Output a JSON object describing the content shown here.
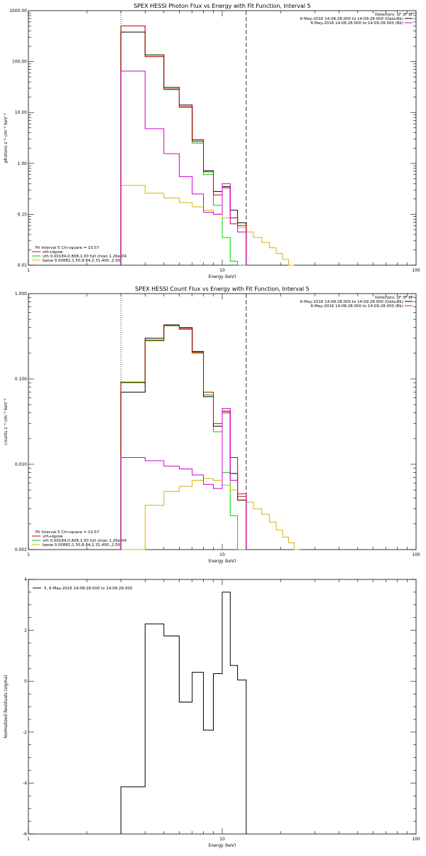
{
  "colors": {
    "data": "#000000",
    "background": "#d000d0",
    "total_fit": "#d00000",
    "vth": "#00d000",
    "bpow": "#d8b400"
  },
  "chart_data": [
    {
      "id": "photon",
      "type": "line",
      "title": "SPEX HESSI Photon Flux vs Energy with Fit Function, Interval 5",
      "xlabel": "Energy (keV)",
      "ylabel": "photons s⁻¹ cm⁻² keV⁻¹",
      "xscale": "log",
      "yscale": "log",
      "xlim": [
        1,
        100
      ],
      "ylim": [
        0.01,
        1000
      ],
      "x_ticks": [
        {
          "v": 1,
          "label": "1"
        },
        {
          "v": 10,
          "label": "10"
        },
        {
          "v": 100,
          "label": "100"
        }
      ],
      "y_ticks": [
        {
          "v": 0.01,
          "label": "0.01"
        },
        {
          "v": 0.1,
          "label": "0.10"
        },
        {
          "v": 1,
          "label": "1.00"
        },
        {
          "v": 10,
          "label": "10.00"
        },
        {
          "v": 100,
          "label": "100.00"
        },
        {
          "v": 1000,
          "label": "1000.00"
        }
      ],
      "vlines": [
        {
          "x": 3.0,
          "style": "dotted"
        },
        {
          "x": 13.3,
          "style": "dashed"
        }
      ],
      "legend_top_right": [
        {
          "text": "Detectors: 1F 3F 8F",
          "color": ""
        },
        {
          "text": "6-May-2016 14:08:28.000 to 14:09:28.000 (Data-Bk)",
          "color": "data"
        },
        {
          "text": "6-May-2016 14:08:28.000 to 14:09:28.000 (Bk)",
          "color": "background"
        }
      ],
      "legend_bottom_left": [
        {
          "text": "Fit Interval 5   Chi-square = 10.57",
          "color": ""
        },
        {
          "text": "vth+bpow",
          "color": "total_fit"
        },
        {
          "text": "vth 0.00184,0.808,1.00  full chian 1.26e-04",
          "color": "vth"
        },
        {
          "text": "bpow 0.00882,1.50,8.84,2.31,400.,2.50",
          "color": "bpow"
        }
      ],
      "series": [
        {
          "key": "vth",
          "color": "vth",
          "edges": [
            3,
            4,
            5,
            6,
            7,
            8,
            9,
            10,
            11,
            12,
            13.3
          ],
          "values": [
            500,
            125,
            28,
            12.5,
            2.5,
            0.6,
            0.15,
            0.035,
            0.012,
            0.006
          ]
        },
        {
          "key": "bpow",
          "color": "bpow",
          "edges": [
            3,
            4,
            5,
            6,
            7,
            8,
            9,
            10,
            11,
            12,
            13.3,
            14.5,
            16,
            17.5,
            19,
            20.5,
            22,
            23.5
          ],
          "values": [
            0.37,
            0.26,
            0.21,
            0.17,
            0.14,
            0.12,
            0.1,
            0.085,
            0.065,
            0.055,
            0.045,
            0.035,
            0.028,
            0.022,
            0.017,
            0.013,
            0.01
          ]
        },
        {
          "key": "data",
          "color": "data",
          "edges": [
            3,
            4,
            5,
            6,
            7,
            8,
            9,
            10,
            11,
            12,
            13.3
          ],
          "values": [
            380,
            135,
            31,
            14,
            2.9,
            0.72,
            0.28,
            0.35,
            0.12,
            0.068
          ]
        },
        {
          "key": "total_fit",
          "color": "total_fit",
          "edges": [
            3,
            4,
            5,
            6,
            7,
            8,
            9,
            10,
            11,
            12,
            13.3
          ],
          "values": [
            500,
            125,
            29,
            13,
            2.7,
            0.68,
            0.24,
            0.33,
            0.085,
            0.06
          ]
        },
        {
          "key": "background",
          "color": "background",
          "edges": [
            3,
            4,
            5,
            6,
            7,
            8,
            9,
            10,
            11,
            12,
            13.3
          ],
          "values": [
            65,
            4.8,
            1.55,
            0.55,
            0.25,
            0.11,
            0.1,
            0.4,
            0.065,
            0.045
          ]
        }
      ]
    },
    {
      "id": "count",
      "type": "line",
      "title": "SPEX HESSI Count Flux vs Energy with Fit Function, Interval 5",
      "xlabel": "Energy (keV)",
      "ylabel": "counts s⁻¹ cm⁻² keV⁻¹",
      "xscale": "log",
      "yscale": "log",
      "xlim": [
        1,
        100
      ],
      "ylim": [
        0.001,
        1
      ],
      "x_ticks": [
        {
          "v": 1,
          "label": "1"
        },
        {
          "v": 10,
          "label": "10"
        },
        {
          "v": 100,
          "label": "100"
        }
      ],
      "y_ticks": [
        {
          "v": 0.001,
          "label": "0.001"
        },
        {
          "v": 0.01,
          "label": "0.010"
        },
        {
          "v": 0.1,
          "label": "0.100"
        },
        {
          "v": 1,
          "label": "1.000"
        }
      ],
      "vlines": [
        {
          "x": 3.0,
          "style": "dotted"
        },
        {
          "x": 13.3,
          "style": "dashed"
        }
      ],
      "legend_top_right": [
        {
          "text": "Detectors: 1F 3F 8F",
          "color": ""
        },
        {
          "text": "6-May-2016 14:08:28.000 to 14:09:28.000 (Data-Bk)",
          "color": "data"
        },
        {
          "text": "6-May-2016 14:08:28.000 to 14:09:28.000 (Bk)",
          "color": "background"
        }
      ],
      "legend_bottom_left": [
        {
          "text": "Fit Interval 5   Chi-square = 10.57",
          "color": ""
        },
        {
          "text": "vth+bpow",
          "color": "total_fit"
        },
        {
          "text": "vth 0.00184,0.808,1.00  full chian 1.26e-04",
          "color": "vth"
        },
        {
          "text": "bpow 0.00882,1.50,8.84,2.31,400.,2.50",
          "color": "bpow"
        }
      ],
      "series": [
        {
          "key": "vth",
          "color": "vth",
          "edges": [
            3,
            4,
            5,
            6,
            7,
            8,
            9,
            10,
            11,
            12,
            13.3
          ],
          "values": [
            0.09,
            0.28,
            0.42,
            0.38,
            0.2,
            0.065,
            0.024,
            0.008,
            0.0025,
            0.001
          ]
        },
        {
          "key": "bpow",
          "color": "bpow",
          "edges": [
            3,
            4,
            5,
            6,
            7,
            8,
            9,
            10,
            11,
            12,
            13.3,
            14.5,
            16,
            17.5,
            19,
            20.5,
            22,
            23.5,
            25
          ],
          "values": [
            0.001,
            0.0033,
            0.0048,
            0.0055,
            0.0065,
            0.0068,
            0.0065,
            0.0057,
            0.005,
            0.0045,
            0.0036,
            0.003,
            0.0026,
            0.0021,
            0.0017,
            0.0014,
            0.0012,
            0.001
          ]
        },
        {
          "key": "data",
          "color": "data",
          "edges": [
            3,
            4,
            5,
            6,
            7,
            8,
            9,
            10,
            11,
            12,
            13.3
          ],
          "values": [
            0.07,
            0.3,
            0.43,
            0.4,
            0.21,
            0.062,
            0.028,
            0.042,
            0.0078,
            0.0038
          ]
        },
        {
          "key": "total_fit",
          "color": "total_fit",
          "edges": [
            3,
            4,
            5,
            6,
            7,
            8,
            9,
            10,
            11,
            12,
            13.3
          ],
          "values": [
            0.092,
            0.285,
            0.425,
            0.39,
            0.205,
            0.07,
            0.03,
            0.04,
            0.012,
            0.0042
          ]
        },
        {
          "key": "background",
          "color": "background",
          "edges": [
            3,
            4,
            5,
            6,
            7,
            8,
            9,
            10,
            11,
            12,
            13.3
          ],
          "values": [
            0.012,
            0.011,
            0.0095,
            0.0088,
            0.0075,
            0.0058,
            0.0052,
            0.045,
            0.0065,
            0.0045
          ]
        }
      ]
    },
    {
      "id": "residuals",
      "type": "line",
      "title": "",
      "xlabel": "Energy (keV)",
      "ylabel": "Normalized Residuals (sigma)",
      "xscale": "log",
      "yscale": "linear",
      "xlim": [
        1,
        100
      ],
      "ylim": [
        -6,
        4
      ],
      "x_ticks": [
        {
          "v": 1,
          "label": "1"
        },
        {
          "v": 10,
          "label": "10"
        },
        {
          "v": 100,
          "label": "100"
        }
      ],
      "y_ticks": [
        {
          "v": -6,
          "label": "-6"
        },
        {
          "v": -4,
          "label": "-4"
        },
        {
          "v": -2,
          "label": "-2"
        },
        {
          "v": 0,
          "label": "0"
        },
        {
          "v": 2,
          "label": "2"
        },
        {
          "v": 4,
          "label": "4"
        }
      ],
      "vlines": [],
      "legend_top_left": [
        {
          "text": "5,  6-May-2016 14:08:28.000 to 14:09:28.000",
          "color": "data"
        }
      ],
      "series": [
        {
          "key": "residuals",
          "color": "data",
          "edges": [
            3,
            4,
            5,
            6,
            7,
            8,
            9,
            10,
            11,
            12,
            13.3
          ],
          "values": [
            -4.15,
            2.25,
            1.78,
            -0.82,
            0.35,
            -1.92,
            0.3,
            3.5,
            0.62,
            0.05
          ],
          "baseline": -6
        }
      ]
    }
  ]
}
